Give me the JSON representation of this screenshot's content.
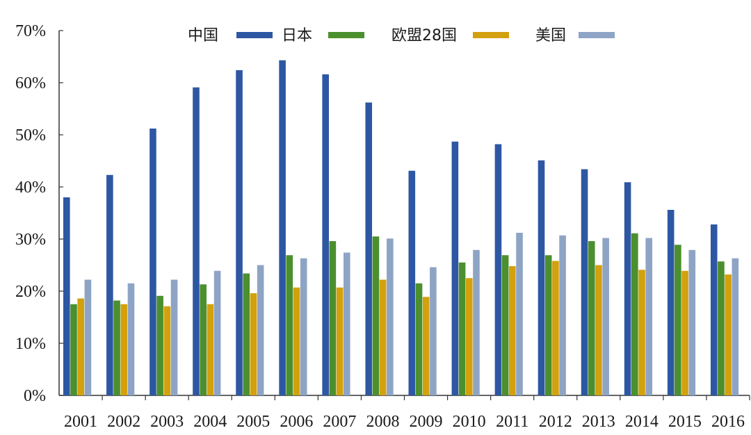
{
  "chart_data": {
    "type": "bar",
    "title": "",
    "xlabel": "",
    "ylabel": "",
    "ylim": [
      0,
      70
    ],
    "y_tick_values": [
      0,
      10,
      20,
      30,
      40,
      50,
      60,
      70
    ],
    "y_tick_labels": [
      "0%",
      "10%",
      "20%",
      "30%",
      "40%",
      "50%",
      "60%",
      "70%"
    ],
    "legend_position": "top",
    "categories": [
      "2001",
      "2002",
      "2003",
      "2004",
      "2005",
      "2006",
      "2007",
      "2008",
      "2009",
      "2010",
      "2011",
      "2012",
      "2013",
      "2014",
      "2015",
      "2016"
    ],
    "series": [
      {
        "name": "中国",
        "color": "#2e57a3",
        "values": [
          38.0,
          42.3,
          51.2,
          59.1,
          62.4,
          64.3,
          61.6,
          56.2,
          43.1,
          48.7,
          48.2,
          45.1,
          43.4,
          40.9,
          35.6,
          32.8
        ]
      },
      {
        "name": "日本",
        "color": "#4b8f2e",
        "values": [
          17.5,
          18.2,
          19.1,
          21.3,
          23.4,
          26.9,
          29.6,
          30.5,
          21.5,
          25.5,
          26.9,
          26.9,
          29.6,
          31.1,
          28.9,
          25.7
        ]
      },
      {
        "name": "欧盟28国",
        "color": "#d3a00e",
        "values": [
          18.6,
          17.5,
          17.1,
          17.5,
          19.6,
          20.7,
          20.7,
          22.2,
          18.9,
          22.5,
          24.8,
          25.8,
          25.0,
          24.1,
          23.9,
          23.2
        ]
      },
      {
        "name": "美国",
        "color": "#8ea4c5",
        "values": [
          22.2,
          21.5,
          22.2,
          23.9,
          25.0,
          26.3,
          27.4,
          30.1,
          24.6,
          27.9,
          31.2,
          30.7,
          30.2,
          30.2,
          27.9,
          26.3
        ]
      }
    ]
  }
}
